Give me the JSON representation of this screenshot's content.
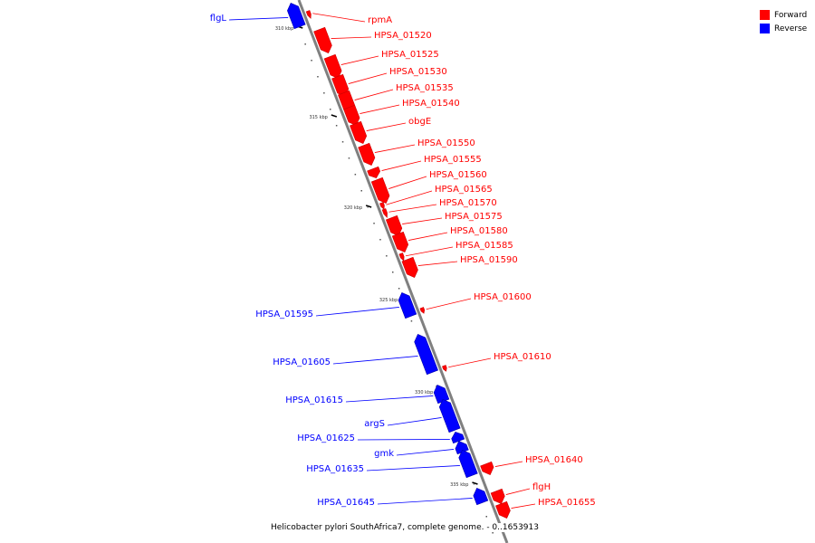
{
  "caption": "Helicobacter pylori SouthAfrica7, complete genome. - 0..1653913",
  "legend": [
    {
      "label": "Forward",
      "color": "#ff0000"
    },
    {
      "label": "Reverse",
      "color": "#0000ff"
    }
  ],
  "colors": {
    "forward": "#ff0000",
    "reverse": "#0000ff",
    "backbone": "#888888"
  },
  "ticks": [
    "310 kbp",
    "315 kbp",
    "320 kbp",
    "325 kbp",
    "330 kbp",
    "335 kbp"
  ],
  "genes": [
    {
      "name": "flgL",
      "strand": "reverse"
    },
    {
      "name": "rpmA",
      "strand": "forward"
    },
    {
      "name": "HPSA_01520",
      "strand": "forward"
    },
    {
      "name": "HPSA_01525",
      "strand": "forward"
    },
    {
      "name": "HPSA_01530",
      "strand": "forward"
    },
    {
      "name": "HPSA_01535",
      "strand": "forward"
    },
    {
      "name": "HPSA_01540",
      "strand": "forward"
    },
    {
      "name": "obgE",
      "strand": "forward"
    },
    {
      "name": "HPSA_01550",
      "strand": "forward"
    },
    {
      "name": "HPSA_01555",
      "strand": "forward"
    },
    {
      "name": "HPSA_01560",
      "strand": "forward"
    },
    {
      "name": "HPSA_01565",
      "strand": "forward"
    },
    {
      "name": "HPSA_01570",
      "strand": "forward"
    },
    {
      "name": "HPSA_01575",
      "strand": "forward"
    },
    {
      "name": "HPSA_01580",
      "strand": "forward"
    },
    {
      "name": "HPSA_01585",
      "strand": "forward"
    },
    {
      "name": "HPSA_01590",
      "strand": "forward"
    },
    {
      "name": "HPSA_01595",
      "strand": "reverse"
    },
    {
      "name": "HPSA_01600",
      "strand": "forward"
    },
    {
      "name": "HPSA_01605",
      "strand": "reverse"
    },
    {
      "name": "HPSA_01610",
      "strand": "forward"
    },
    {
      "name": "HPSA_01615",
      "strand": "reverse"
    },
    {
      "name": "argS",
      "strand": "reverse"
    },
    {
      "name": "HPSA_01625",
      "strand": "reverse"
    },
    {
      "name": "gmk",
      "strand": "reverse"
    },
    {
      "name": "HPSA_01635",
      "strand": "reverse"
    },
    {
      "name": "HPSA_01640",
      "strand": "forward"
    },
    {
      "name": "HPSA_01645",
      "strand": "reverse"
    },
    {
      "name": "flgH",
      "strand": "forward"
    },
    {
      "name": "HPSA_01655",
      "strand": "forward"
    }
  ]
}
